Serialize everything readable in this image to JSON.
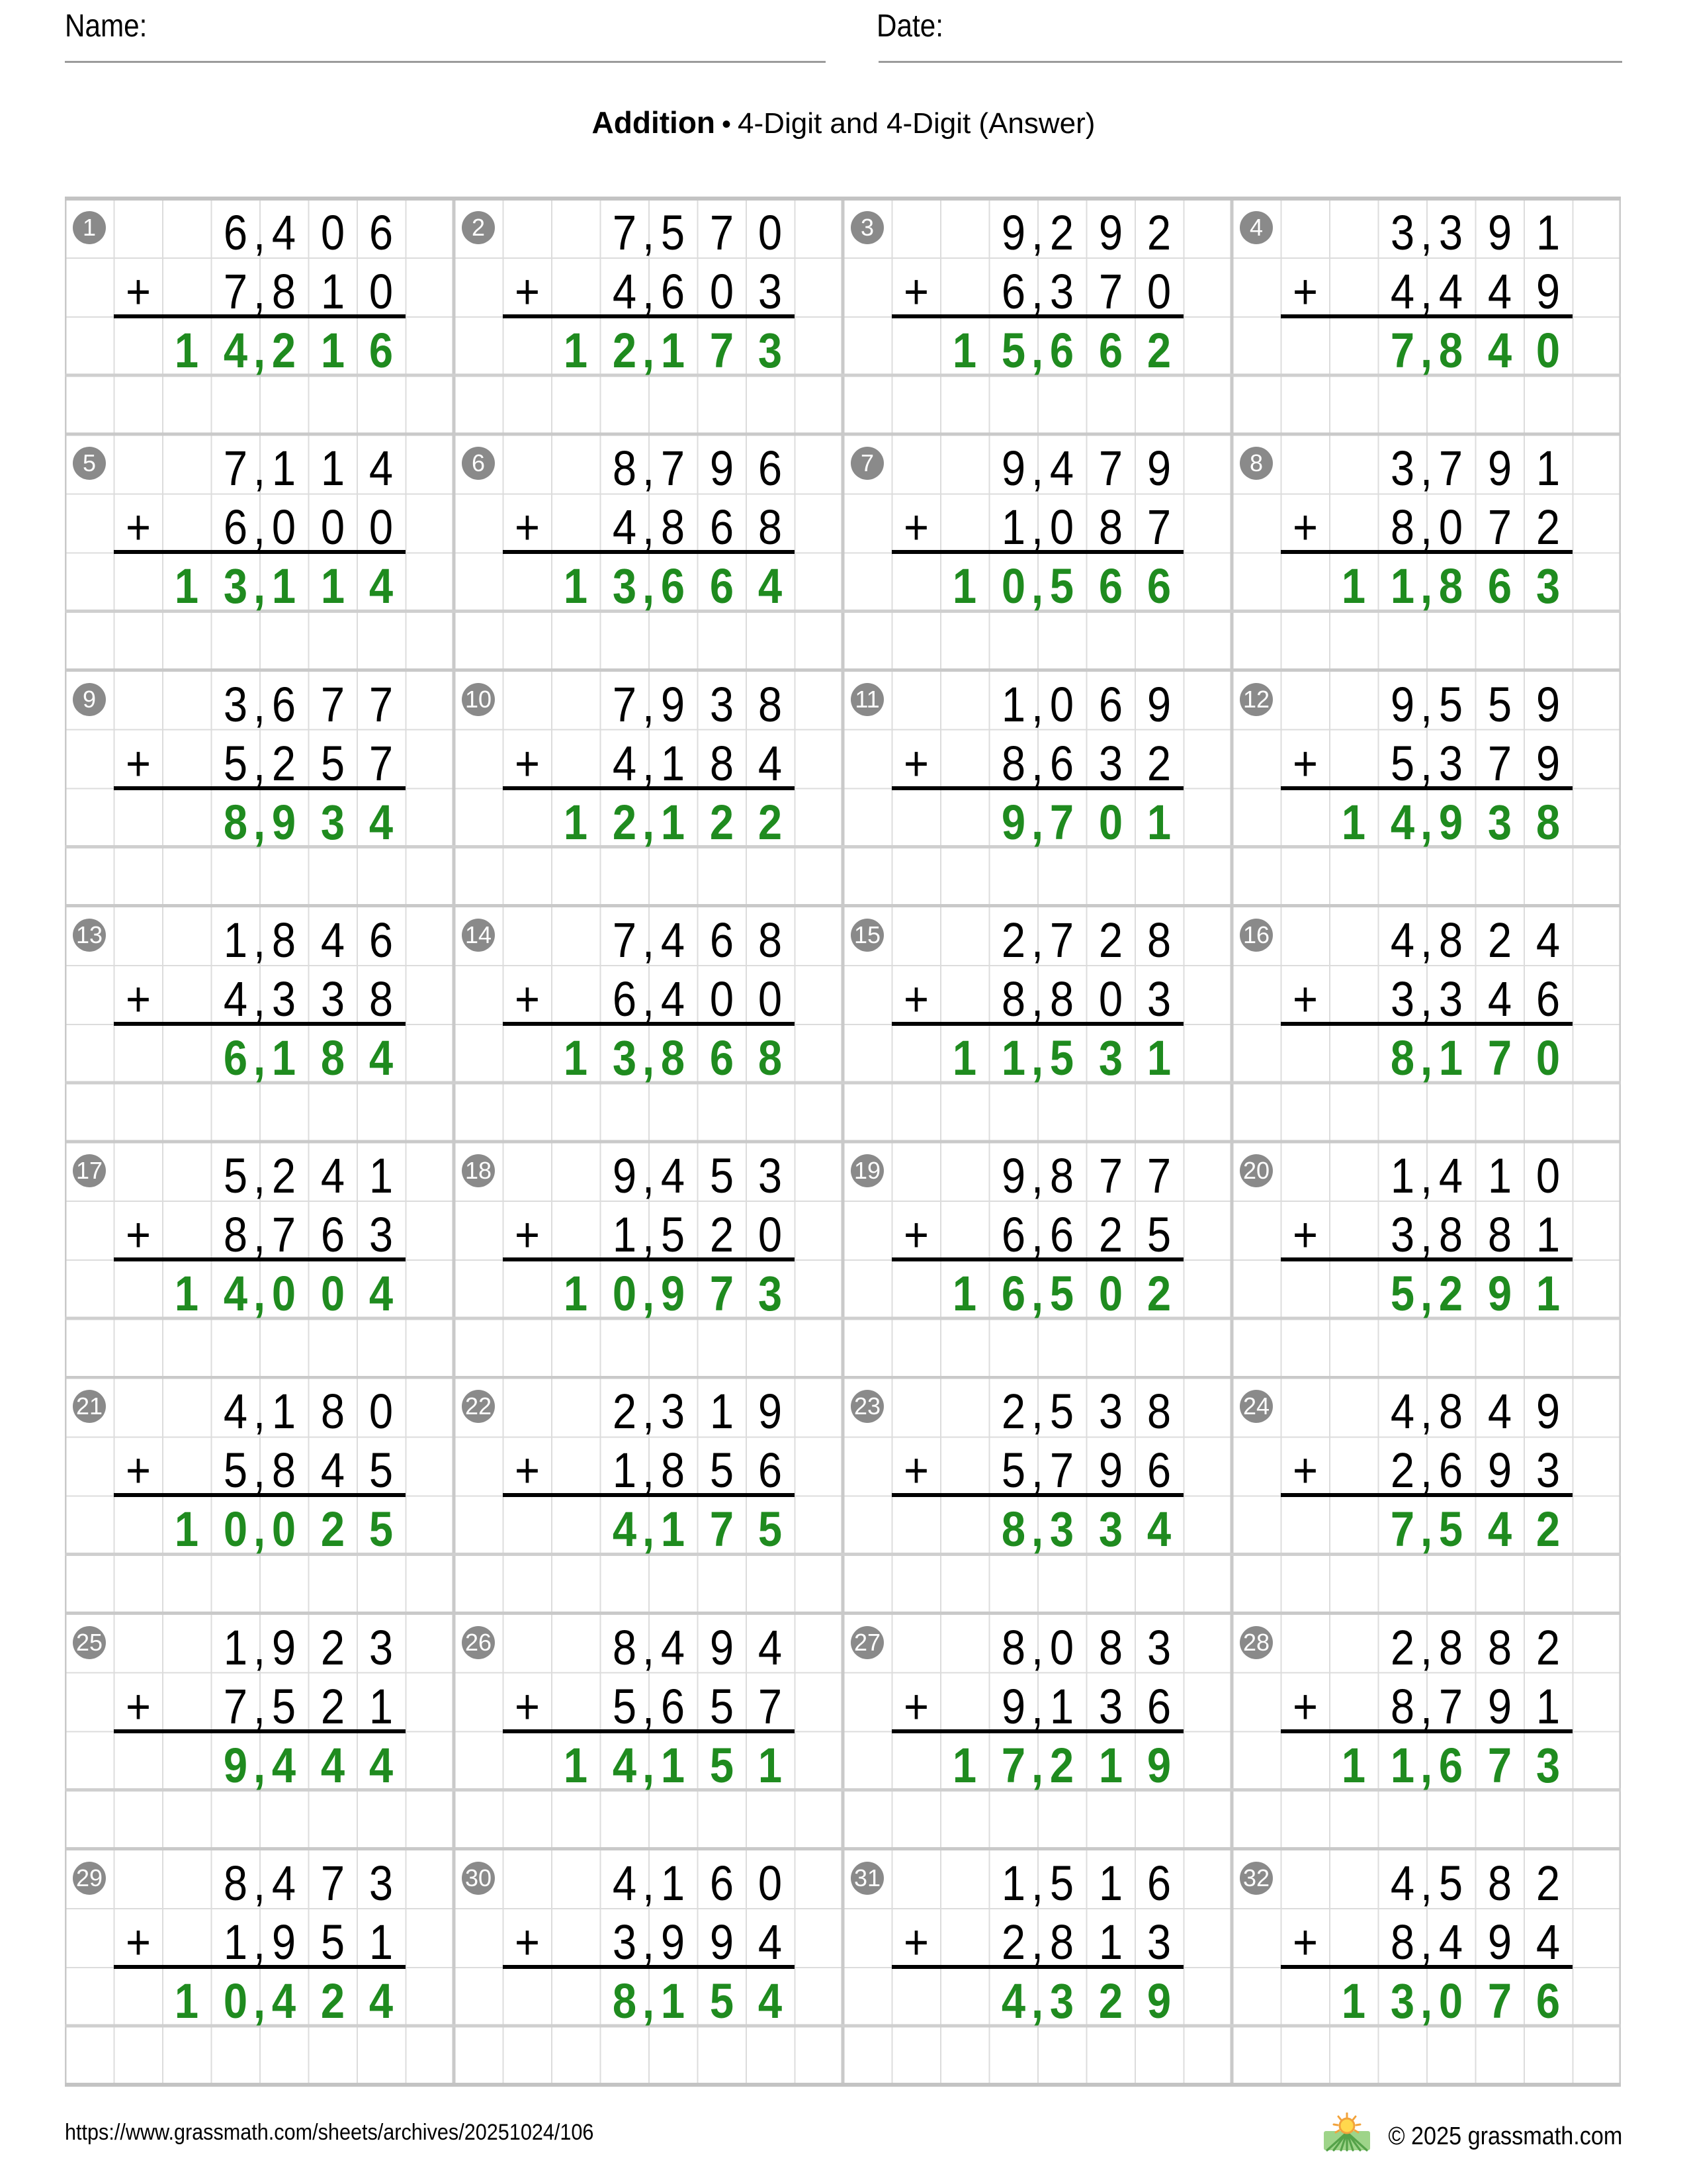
{
  "header": {
    "name_label": "Name:",
    "date_label": "Date:",
    "title_bold": "Addition",
    "title_sep": "•",
    "title_rest": "4-Digit and 4-Digit (Answer)"
  },
  "operator": "+",
  "problems": [
    {
      "num": "1",
      "a": "6,406",
      "b": "7,810",
      "answer": "14,216"
    },
    {
      "num": "2",
      "a": "7,570",
      "b": "4,603",
      "answer": "12,173"
    },
    {
      "num": "3",
      "a": "9,292",
      "b": "6,370",
      "answer": "15,662"
    },
    {
      "num": "4",
      "a": "3,391",
      "b": "4,449",
      "answer": "7,840"
    },
    {
      "num": "5",
      "a": "7,114",
      "b": "6,000",
      "answer": "13,114"
    },
    {
      "num": "6",
      "a": "8,796",
      "b": "4,868",
      "answer": "13,664"
    },
    {
      "num": "7",
      "a": "9,479",
      "b": "1,087",
      "answer": "10,566"
    },
    {
      "num": "8",
      "a": "3,791",
      "b": "8,072",
      "answer": "11,863"
    },
    {
      "num": "9",
      "a": "3,677",
      "b": "5,257",
      "answer": "8,934"
    },
    {
      "num": "10",
      "a": "7,938",
      "b": "4,184",
      "answer": "12,122"
    },
    {
      "num": "11",
      "a": "1,069",
      "b": "8,632",
      "answer": "9,701"
    },
    {
      "num": "12",
      "a": "9,559",
      "b": "5,379",
      "answer": "14,938"
    },
    {
      "num": "13",
      "a": "1,846",
      "b": "4,338",
      "answer": "6,184"
    },
    {
      "num": "14",
      "a": "7,468",
      "b": "6,400",
      "answer": "13,868"
    },
    {
      "num": "15",
      "a": "2,728",
      "b": "8,803",
      "answer": "11,531"
    },
    {
      "num": "16",
      "a": "4,824",
      "b": "3,346",
      "answer": "8,170"
    },
    {
      "num": "17",
      "a": "5,241",
      "b": "8,763",
      "answer": "14,004"
    },
    {
      "num": "18",
      "a": "9,453",
      "b": "1,520",
      "answer": "10,973"
    },
    {
      "num": "19",
      "a": "9,877",
      "b": "6,625",
      "answer": "16,502"
    },
    {
      "num": "20",
      "a": "1,410",
      "b": "3,881",
      "answer": "5,291"
    },
    {
      "num": "21",
      "a": "4,180",
      "b": "5,845",
      "answer": "10,025"
    },
    {
      "num": "22",
      "a": "2,319",
      "b": "1,856",
      "answer": "4,175"
    },
    {
      "num": "23",
      "a": "2,538",
      "b": "5,796",
      "answer": "8,334"
    },
    {
      "num": "24",
      "a": "4,849",
      "b": "2,693",
      "answer": "7,542"
    },
    {
      "num": "25",
      "a": "1,923",
      "b": "7,521",
      "answer": "9,444"
    },
    {
      "num": "26",
      "a": "8,494",
      "b": "5,657",
      "answer": "14,151"
    },
    {
      "num": "27",
      "a": "8,083",
      "b": "9,136",
      "answer": "17,219"
    },
    {
      "num": "28",
      "a": "2,882",
      "b": "8,791",
      "answer": "11,673"
    },
    {
      "num": "29",
      "a": "8,473",
      "b": "1,951",
      "answer": "10,424"
    },
    {
      "num": "30",
      "a": "4,160",
      "b": "3,994",
      "answer": "8,154"
    },
    {
      "num": "31",
      "a": "1,516",
      "b": "2,813",
      "answer": "4,329"
    },
    {
      "num": "32",
      "a": "4,582",
      "b": "8,494",
      "answer": "13,076"
    }
  ],
  "footer": {
    "url": "https://www.grassmath.com/sheets/archives/20251024/106",
    "copyright": "© 2025 grassmath.com",
    "logo": "sun-over-grass-icon"
  },
  "colors": {
    "answer_green": "#1f8b1f",
    "badge_gray": "#8a8a8a",
    "grid_line": "#dcdcdc",
    "grid_line_thick": "#c9c9c9",
    "underline_gray": "#9b9b9b"
  }
}
